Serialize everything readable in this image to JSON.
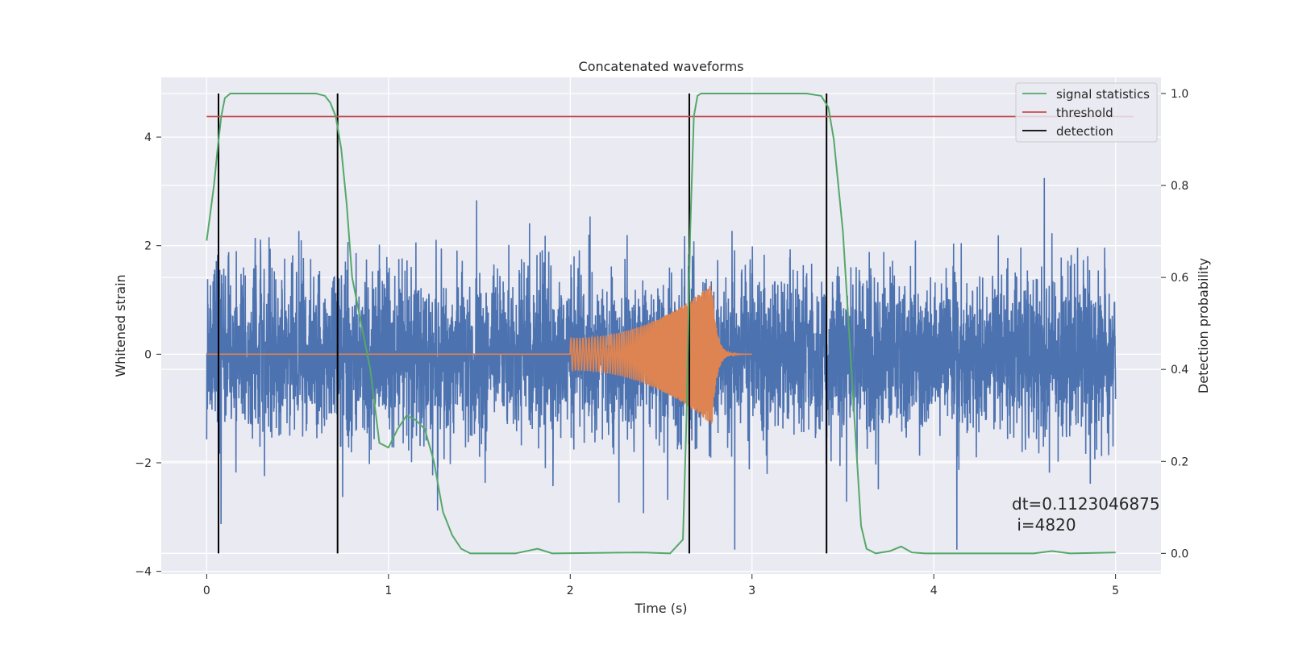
{
  "chart_data": {
    "type": "line",
    "title": "Concatenated waveforms",
    "xlabel": "Time (s)",
    "ylabel": "Whitened strain",
    "ylabel_right": "Detection probability",
    "xlim": [
      -0.25,
      5.25
    ],
    "ylim": [
      -4.05,
      5.1
    ],
    "ylim_right": [
      -0.045,
      1.035
    ],
    "x_ticks": [
      0,
      1,
      2,
      3,
      4,
      5
    ],
    "x_tick_labels": [
      "0",
      "1",
      "2",
      "3",
      "4",
      "5"
    ],
    "y_ticks": [
      -4,
      -2,
      0,
      2,
      4
    ],
    "y_tick_labels": [
      "−4",
      "−2",
      "0",
      "2",
      "4"
    ],
    "y_right_ticks": [
      0.0,
      0.2,
      0.4,
      0.6,
      0.8,
      1.0
    ],
    "y_right_tick_labels": [
      "0.0",
      "0.2",
      "0.4",
      "0.6",
      "0.8",
      "1.0"
    ],
    "grid": true,
    "legend_position": "top-right",
    "annotation": {
      "line1": "dt=0.1123046875",
      "line2": " i=4820"
    },
    "series": [
      {
        "name": "",
        "axis": "left",
        "color": "#4c72b0",
        "description": "noisy whitened strain 0–5 s, amplitude about ±1.5 with spikes up to about ±3.5",
        "x_range": [
          0,
          5
        ],
        "noise_std": 0.75
      },
      {
        "name": "",
        "axis": "left",
        "color": "#dd8452",
        "description": "chirp waveform",
        "x_range": [
          0,
          3
        ],
        "chirp_start": 2.0,
        "chirp_end": 2.78,
        "peak_amplitude": 1.3,
        "ringdown_end": 3.0
      },
      {
        "name": "signal statistics",
        "axis": "right",
        "color": "#55a868",
        "points": [
          [
            0.0,
            0.68
          ],
          [
            0.02,
            0.74
          ],
          [
            0.04,
            0.8
          ],
          [
            0.06,
            0.88
          ],
          [
            0.08,
            0.95
          ],
          [
            0.1,
            0.99
          ],
          [
            0.13,
            1.0
          ],
          [
            0.2,
            1.0
          ],
          [
            0.6,
            1.0
          ],
          [
            0.65,
            0.995
          ],
          [
            0.68,
            0.98
          ],
          [
            0.71,
            0.95
          ],
          [
            0.74,
            0.88
          ],
          [
            0.77,
            0.76
          ],
          [
            0.8,
            0.6
          ],
          [
            0.85,
            0.5
          ],
          [
            0.9,
            0.4
          ],
          [
            0.95,
            0.24
          ],
          [
            1.0,
            0.23
          ],
          [
            1.05,
            0.27
          ],
          [
            1.1,
            0.3
          ],
          [
            1.15,
            0.29
          ],
          [
            1.2,
            0.27
          ],
          [
            1.25,
            0.2
          ],
          [
            1.3,
            0.09
          ],
          [
            1.35,
            0.04
          ],
          [
            1.4,
            0.01
          ],
          [
            1.45,
            0.0
          ],
          [
            1.7,
            0.0
          ],
          [
            1.82,
            0.01
          ],
          [
            1.9,
            0.0
          ],
          [
            2.4,
            0.002
          ],
          [
            2.55,
            0.0
          ],
          [
            2.62,
            0.03
          ],
          [
            2.64,
            0.3
          ],
          [
            2.66,
            0.7
          ],
          [
            2.68,
            0.95
          ],
          [
            2.7,
            0.995
          ],
          [
            2.72,
            1.0
          ],
          [
            3.3,
            1.0
          ],
          [
            3.38,
            0.995
          ],
          [
            3.42,
            0.97
          ],
          [
            3.45,
            0.9
          ],
          [
            3.5,
            0.7
          ],
          [
            3.55,
            0.38
          ],
          [
            3.6,
            0.06
          ],
          [
            3.63,
            0.01
          ],
          [
            3.68,
            0.0
          ],
          [
            3.76,
            0.005
          ],
          [
            3.82,
            0.015
          ],
          [
            3.88,
            0.002
          ],
          [
            3.95,
            0.0
          ],
          [
            4.55,
            0.0
          ],
          [
            4.65,
            0.005
          ],
          [
            4.75,
            0.0
          ],
          [
            5.0,
            0.002
          ]
        ]
      },
      {
        "name": "threshold",
        "axis": "right",
        "color": "#c44e52",
        "value": 0.95,
        "x_range": [
          0,
          5.1
        ]
      },
      {
        "name": "detection",
        "axis": "right",
        "color": "#000000",
        "x_values": [
          0.065,
          0.72,
          2.655,
          3.41
        ],
        "y_range": [
          0.0,
          1.0
        ]
      }
    ]
  }
}
